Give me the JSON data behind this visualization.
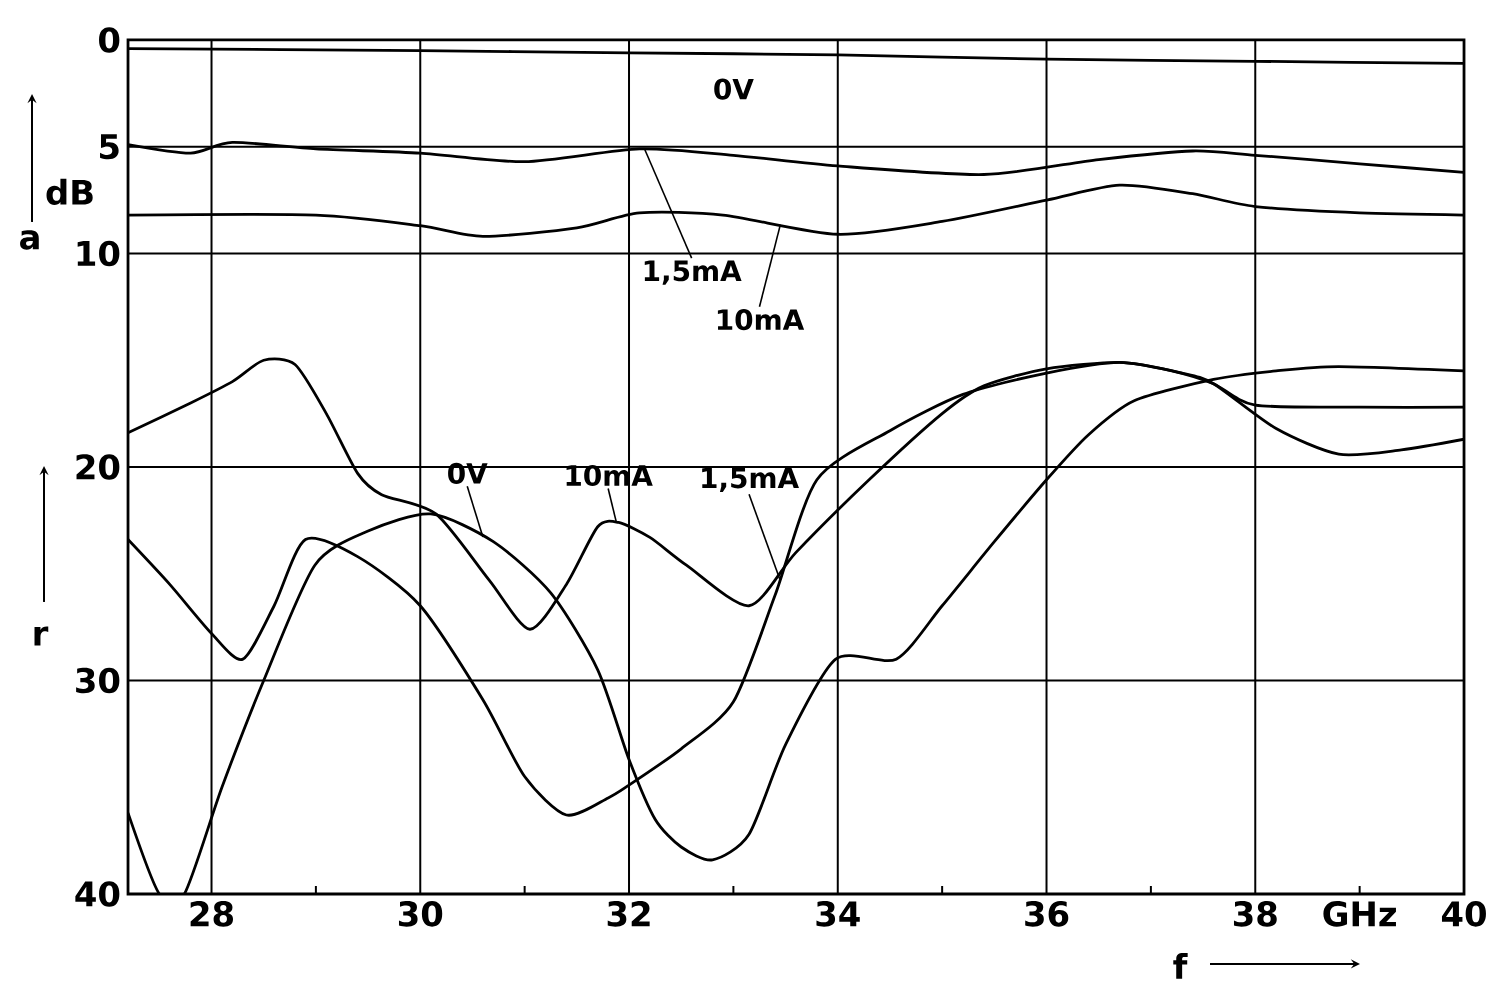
{
  "chart_data": {
    "type": "line",
    "xlabel": "f",
    "ylabel": "r",
    "annotations": [
      "a",
      "dB"
    ],
    "xlim": [
      27.2,
      40
    ],
    "ylim": [
      40,
      0
    ],
    "xticks": [
      28,
      {
        "value": 29,
        "label": null
      },
      30,
      {
        "value": 31,
        "label": null
      },
      32,
      {
        "value": 33,
        "label": null
      },
      34,
      {
        "value": 35,
        "label": null
      },
      36,
      {
        "value": 37,
        "label": null
      },
      38,
      {
        "value": 39,
        "label": "GHz"
      },
      40
    ],
    "yticks": [
      0,
      5,
      10,
      20,
      30,
      40
    ],
    "grid": true,
    "series": [
      {
        "name": "0V",
        "color": "#000000",
        "x": [
          27.2,
          30,
          32,
          34,
          36,
          38,
          40
        ],
        "values": [
          0.4,
          0.5,
          0.6,
          0.7,
          0.9,
          1.0,
          1.1
        ]
      },
      {
        "name": "1,5mA",
        "color": "#000000",
        "x": [
          27.2,
          27.8,
          28.2,
          29,
          30,
          31,
          32.1,
          33,
          34,
          35.4,
          36.5,
          37.4,
          38,
          39,
          40
        ],
        "values": [
          4.9,
          5.3,
          4.8,
          5.1,
          5.3,
          5.7,
          5.1,
          5.4,
          5.9,
          6.3,
          5.6,
          5.2,
          5.4,
          5.8,
          6.2
        ]
      },
      {
        "name": "10mA",
        "color": "#000000",
        "x": [
          27.2,
          29,
          30,
          30.6,
          31.5,
          32.1,
          32.9,
          34,
          35,
          36,
          36.7,
          37.4,
          38,
          39,
          40
        ],
        "values": [
          8.2,
          8.2,
          8.7,
          9.2,
          8.8,
          8.1,
          8.2,
          9.1,
          8.5,
          7.5,
          6.8,
          7.2,
          7.8,
          8.1,
          8.2
        ]
      },
      {
        "name": "0V",
        "color": "#000000",
        "x": [
          27.2,
          27.5,
          27.6,
          27.74,
          28.1,
          28.5,
          28.99,
          29.5,
          30.1,
          30.7,
          31.25,
          31.7,
          32,
          32.25,
          32.5,
          32.8,
          33.15,
          33.5,
          33.98,
          34.56,
          35,
          35.5,
          36,
          36.4,
          36.84,
          37.6,
          38.2,
          38.8,
          40
        ],
        "values": [
          36.2,
          40,
          null,
          40,
          35,
          30,
          24.6,
          23,
          22.2,
          23.5,
          25.9,
          29.5,
          33.7,
          36.5,
          37.8,
          38.4,
          37.2,
          33,
          29.0,
          29.0,
          26.5,
          23.5,
          20.6,
          18.5,
          16.9,
          15.9,
          15.5,
          15.3,
          15.5
        ]
      },
      {
        "name": "10mA",
        "color": "#000000",
        "x": [
          27.2,
          27.8,
          28.2,
          28.5,
          28.8,
          29.1,
          29.4,
          29.63,
          30.15,
          30.66,
          31.05,
          31.4,
          31.7,
          31.9,
          32.2,
          32.55,
          33.15,
          33.6,
          34.3,
          35.0,
          35.4,
          36,
          36.7,
          37.2,
          37.6,
          38,
          39,
          40
        ],
        "values": [
          18.4,
          17,
          16,
          15.0,
          15.2,
          17.5,
          20.3,
          21.3,
          22.2,
          25.3,
          27.6,
          25.5,
          22.8,
          22.6,
          23.3,
          24.6,
          26.5,
          24,
          20.6,
          17.5,
          16.2,
          15.4,
          15.1,
          15.5,
          16.1,
          17.1,
          17.2,
          17.2
        ]
      },
      {
        "name": "1,5mA",
        "color": "#000000",
        "x": [
          27.2,
          27.6,
          28.0,
          28.3,
          28.6,
          28.9,
          29.4,
          30.0,
          30.6,
          31.0,
          31.4,
          31.8,
          32.0,
          32.5,
          33.0,
          33.4,
          33.8,
          34.5,
          35.2,
          36.0,
          36.7,
          37.3,
          37.6,
          38.2,
          38.8,
          39.4,
          40
        ],
        "values": [
          23.4,
          25.5,
          27.8,
          29.0,
          26.5,
          23.4,
          24.2,
          26.5,
          30.9,
          34.5,
          36.3,
          35.5,
          34.9,
          33.2,
          31.0,
          26.0,
          20.6,
          18.3,
          16.6,
          15.6,
          15.1,
          15.6,
          16.1,
          18.2,
          19.4,
          19.2,
          18.7
        ]
      }
    ]
  }
}
